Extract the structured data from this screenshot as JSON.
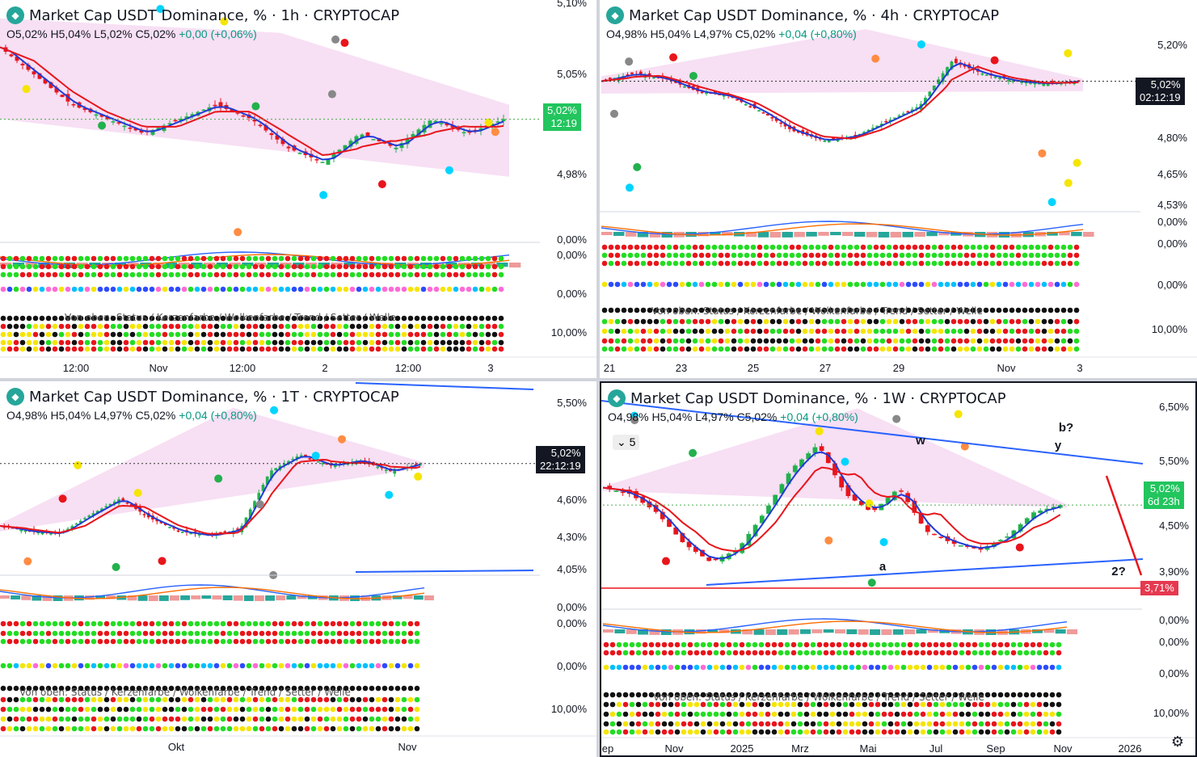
{
  "panels": [
    {
      "id": "p1h",
      "title": "Market Cap USDT Dominance, % · 1h · CRYPTOCAP",
      "ohlc": {
        "o": "O5,02%",
        "h": "H5,04%",
        "l": "L5,02%",
        "c": "C5,02%",
        "chg": "+0,00 (+0,06%)"
      },
      "price_ticks": [
        "5,10%",
        "5,05%",
        "4,98%"
      ],
      "last_price": "5,02%",
      "countdown": "12:19",
      "osc_ticks": [
        "0,00%",
        "0,00%",
        "0,00%",
        "10,00%"
      ],
      "x_ticks": [
        "12:00",
        "Nov",
        "12:00",
        "2",
        "12:00",
        "3"
      ],
      "sub_label": "Von oben: Status / Kerzenfarbe / Wolkenfarbe / Trend / Setter / Welle"
    },
    {
      "id": "p4h",
      "title": "Market Cap USDT Dominance, % · 4h · CRYPTOCAP",
      "ohlc": {
        "o": "O4,98%",
        "h": "H5,04%",
        "l": "L4,97%",
        "c": "C5,02%",
        "chg": "+0,04 (+0,80%)"
      },
      "price_ticks": [
        "5,20%",
        "4,80%",
        "4,65%",
        "4,53%"
      ],
      "last_price": "5,02%",
      "countdown": "02:12:19",
      "osc_ticks": [
        "0,00%",
        "0,00%",
        "0,00%",
        "10,00%"
      ],
      "x_ticks": [
        "21",
        "23",
        "25",
        "27",
        "29",
        "Nov",
        "3"
      ],
      "sub_label": "Von oben: Status / Kerzenfarbe / Wolkenfarbe / Trend / Setter / Welle"
    },
    {
      "id": "p1d",
      "title": "Market Cap USDT Dominance, % · 1T · CRYPTOCAP",
      "ohlc": {
        "o": "O4,98%",
        "h": "H5,04%",
        "l": "L4,97%",
        "c": "C5,02%",
        "chg": "+0,04 (+0,80%)"
      },
      "price_ticks": [
        "5,50%",
        "4,60%",
        "4,30%",
        "4,05%"
      ],
      "last_price": "5,02%",
      "countdown": "22:12:19",
      "osc_ticks": [
        "0,00%",
        "0,00%",
        "0,00%",
        "10,00%"
      ],
      "x_ticks": [
        "Okt",
        "Nov"
      ],
      "sub_label": "Von oben: Status / Kerzenfarbe / Wolkenfarbe / Trend / Setter / Welle"
    },
    {
      "id": "p1w",
      "title": "Market Cap USDT Dominance, % · 1W · CRYPTOCAP",
      "ohlc": {
        "o": "O4,98%",
        "h": "H5,04%",
        "l": "L4,97%",
        "c": "C5,02%",
        "chg": "+0,04 (+0,80%)"
      },
      "price_ticks": [
        "6,50%",
        "5,50%",
        "4,50%",
        "3,90%"
      ],
      "last_price": "5,02%",
      "countdown": "6d 23h",
      "level_price": "3,71%",
      "osc_ticks": [
        "0,00%",
        "0,00%",
        "0,00%",
        "10,00%"
      ],
      "x_ticks": [
        "ep",
        "Nov",
        "2025",
        "Mrz",
        "Mai",
        "Jul",
        "Sep",
        "Nov",
        "2026"
      ],
      "wave_labels": [
        "w",
        "y",
        "a",
        "b?",
        "2?"
      ],
      "sub_label": "Von oben: Status / Kerzenfarbe / Wolkenfarbe / Trend / Setter / Welle",
      "toolbar_count": "5"
    }
  ],
  "colors": {
    "up": "#22b14c",
    "down": "#e8151b",
    "cloud": "#f3d1f0",
    "tenkan": "#1f3bd6",
    "kijun": "#e8151b",
    "price": "#4caf50",
    "level": "#e53950"
  },
  "chart_data": [
    {
      "type": "line",
      "title": "Market Cap USDT Dominance, % · 1h · CRYPTOCAP",
      "series": [
        {
          "values": [
            5.07,
            5.05,
            5.03,
            5.02,
            5.01,
            5.02,
            5.03,
            5.02,
            5.0,
            4.99,
            5.01,
            5.0,
            5.02,
            5.01,
            5.02
          ]
        }
      ],
      "ylim": [
        4.94,
        5.1
      ]
    },
    {
      "type": "line",
      "title": "Market Cap USDT Dominance, % · 4h · CRYPTOCAP",
      "series": [
        {
          "values": [
            5.02,
            5.05,
            5.03,
            4.98,
            4.96,
            4.9,
            4.82,
            4.78,
            4.8,
            4.86,
            4.92,
            5.1,
            5.05,
            5.02,
            5.01,
            5.02
          ]
        }
      ],
      "ylim": [
        4.5,
        5.25
      ]
    },
    {
      "type": "line",
      "title": "Market Cap USDT Dominance, % · 1T · CRYPTOCAP",
      "series": [
        {
          "values": [
            4.45,
            4.4,
            4.38,
            4.55,
            4.7,
            4.52,
            4.4,
            4.36,
            4.42,
            4.95,
            5.1,
            5.0,
            5.05,
            4.95,
            5.02
          ]
        }
      ],
      "ylim": [
        4.0,
        5.55
      ]
    },
    {
      "type": "line",
      "title": "Market Cap USDT Dominance, % · 1W · CRYPTOCAP",
      "series": [
        {
          "values": [
            5.3,
            5.2,
            4.9,
            4.4,
            4.1,
            4.3,
            4.9,
            5.6,
            6.0,
            5.2,
            4.9,
            5.3,
            4.6,
            4.4,
            4.3,
            4.5,
            4.9,
            5.02
          ]
        }
      ],
      "ylim": [
        3.6,
        6.6
      ]
    }
  ]
}
